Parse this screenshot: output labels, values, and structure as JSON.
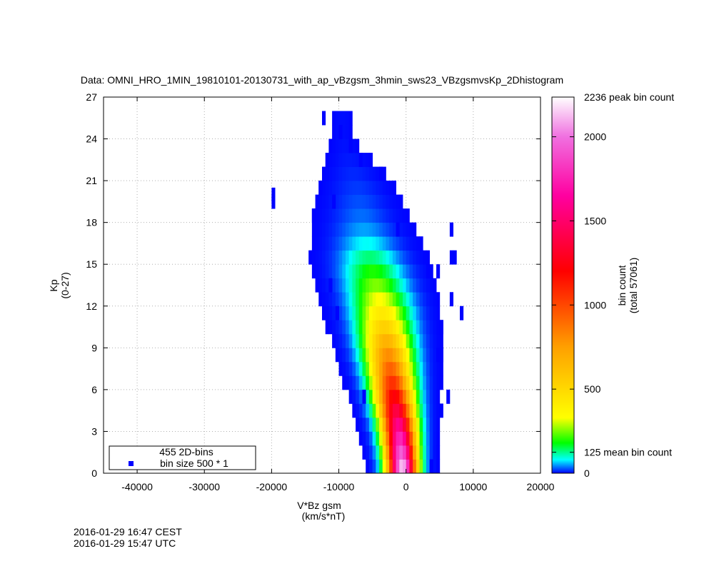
{
  "chart_data": {
    "type": "heatmap",
    "title": "Data: OMNI_HRO_1MIN_19810101-20130731_with_ap_vBzgsm_3hmin_sws23_VBzgsmvsKp_2Dhistogram",
    "xlabel": [
      "V*Bz gsm",
      "(km/s*nT)"
    ],
    "ylabel": [
      "Kp",
      "(0-27)"
    ],
    "xlim": [
      -45000,
      20000
    ],
    "ylim": [
      0,
      27
    ],
    "xticks": [
      -40000,
      -30000,
      -20000,
      -10000,
      0,
      10000,
      20000
    ],
    "yticks": [
      0,
      3,
      6,
      9,
      12,
      15,
      18,
      21,
      24,
      27
    ],
    "grid": true,
    "bin_width": 500,
    "bin_height": 1,
    "colorbar": {
      "label": [
        "bin count",
        "(total 57061)"
      ],
      "max": 2236,
      "ticks": [
        {
          "value": 0,
          "label": "0"
        },
        {
          "value": 125,
          "label": "125 mean bin count"
        },
        {
          "value": 500,
          "label": "500"
        },
        {
          "value": 1000,
          "label": "1000"
        },
        {
          "value": 1500,
          "label": "1500"
        },
        {
          "value": 2000,
          "label": "2000"
        },
        {
          "value": 2236,
          "label": "2236 peak bin count"
        }
      ],
      "stops": [
        {
          "value": 0,
          "color": "#0000ff"
        },
        {
          "value": 80,
          "color": "#00ffff"
        },
        {
          "value": 180,
          "color": "#00ff00"
        },
        {
          "value": 330,
          "color": "#ffff00"
        },
        {
          "value": 750,
          "color": "#ffa000"
        },
        {
          "value": 1200,
          "color": "#ff0000"
        },
        {
          "value": 1650,
          "color": "#ff00a0"
        },
        {
          "value": 2000,
          "color": "#f070e0"
        },
        {
          "value": 2236,
          "color": "#ffffff"
        }
      ]
    },
    "legend": {
      "position": "bottom-left",
      "entries": [
        "455 2D-bins",
        "bin size 500 * 1"
      ],
      "marker_color": "#0000ff"
    },
    "ridge": [
      {
        "kp": 0,
        "center": -500,
        "halfwidth": 2000,
        "peak": 2236
      },
      {
        "kp": 3,
        "center": -1000,
        "halfwidth": 2300,
        "peak": 1700
      },
      {
        "kp": 6,
        "center": -1900,
        "halfwidth": 2800,
        "peak": 1150
      },
      {
        "kp": 9,
        "center": -2800,
        "halfwidth": 3300,
        "peak": 750
      },
      {
        "kp": 12,
        "center": -3700,
        "halfwidth": 3800,
        "peak": 380
      },
      {
        "kp": 15,
        "center": -5200,
        "halfwidth": 4200,
        "peak": 170
      },
      {
        "kp": 18,
        "center": -6500,
        "halfwidth": 4000,
        "peak": 40
      },
      {
        "kp": 21,
        "center": -7500,
        "halfwidth": 3500,
        "peak": 15
      },
      {
        "kp": 24,
        "center": -9500,
        "halfwidth": 1500,
        "peak": 4
      }
    ],
    "extra_bins": [
      [
        -20000,
        19
      ],
      [
        -20000,
        19.5
      ],
      [
        -14000,
        18
      ],
      [
        -12500,
        25
      ],
      [
        -10000,
        24
      ],
      [
        -8500,
        23
      ],
      [
        6500,
        17
      ],
      [
        7000,
        15
      ],
      [
        6500,
        15
      ],
      [
        6500,
        12
      ],
      [
        8000,
        11
      ],
      [
        6000,
        5
      ],
      [
        5000,
        8
      ],
      [
        3500,
        0
      ],
      [
        -6500,
        5
      ],
      [
        -11500,
        13
      ],
      [
        -10500,
        11
      ],
      [
        -11000,
        19
      ],
      [
        -13000,
        20
      ],
      [
        5000,
        4
      ],
      [
        4500,
        14
      ],
      [
        3000,
        14
      ],
      [
        -7000,
        22
      ],
      [
        -4000,
        21
      ],
      [
        -2000,
        20
      ],
      [
        -1500,
        17
      ],
      [
        5000,
        10
      ],
      [
        4500,
        8
      ]
    ]
  },
  "timestamps": [
    "2016-01-29 16:47 CEST",
    "2016-01-29 15:47 UTC"
  ]
}
